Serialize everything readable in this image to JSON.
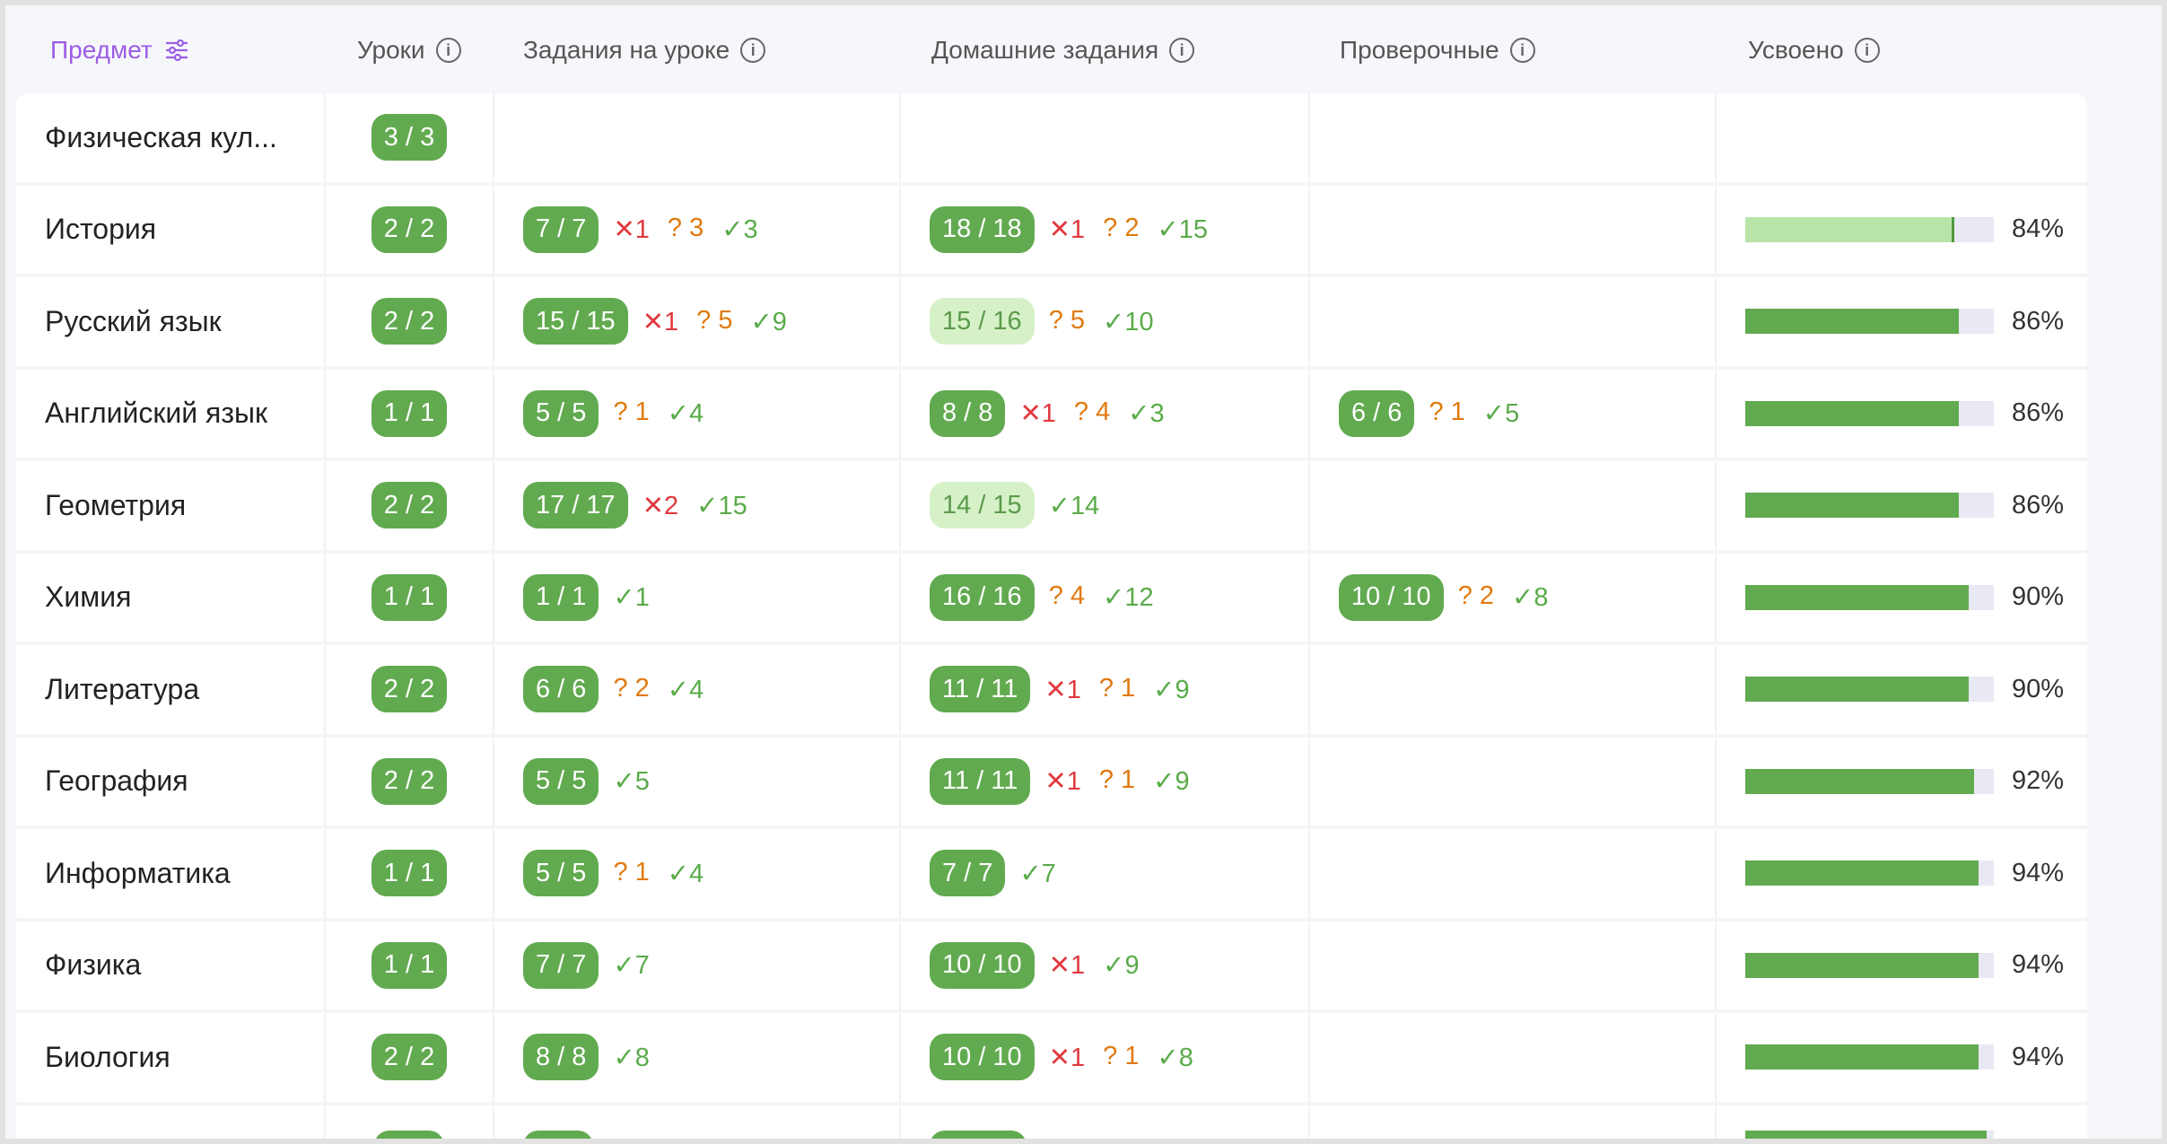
{
  "header": {
    "subject": "Предмет",
    "lessons": "Уроки",
    "class_tasks": "Задания на уроке",
    "homework": "Домашние задания",
    "tests": "Проверочные",
    "mastered": "Усвоено"
  },
  "colors": {
    "accent": "#9b5de5",
    "pill": "#62aa50",
    "pill_partial": "#d6f1c8",
    "wrong": "#e0393e",
    "unknown": "#e07a10",
    "correct": "#5aab4a"
  },
  "rows": [
    {
      "subject": "Физическая кул...",
      "lessons": "3 / 3"
    },
    {
      "subject": "История",
      "lessons": "2 / 2",
      "class": {
        "score": "7 / 7",
        "x": "1",
        "q": "3",
        "ok": "3"
      },
      "home": {
        "score": "18 / 18",
        "x": "1",
        "q": "2",
        "ok": "15"
      },
      "mastered": 84,
      "mastered_label": "84%",
      "light": true
    },
    {
      "subject": "Русский язык",
      "lessons": "2 / 2",
      "class": {
        "score": "15 / 15",
        "x": "1",
        "q": "5",
        "ok": "9"
      },
      "home": {
        "score": "15 / 16",
        "partial": true,
        "q": "5",
        "ok": "10"
      },
      "mastered": 86,
      "mastered_label": "86%"
    },
    {
      "subject": "Английский язык",
      "lessons": "1 / 1",
      "class": {
        "score": "5 / 5",
        "q": "1",
        "ok": "4"
      },
      "home": {
        "score": "8 / 8",
        "x": "1",
        "q": "4",
        "ok": "3"
      },
      "tests": {
        "score": "6 / 6",
        "q": "1",
        "ok": "5"
      },
      "mastered": 86,
      "mastered_label": "86%"
    },
    {
      "subject": "Геометрия",
      "lessons": "2 / 2",
      "class": {
        "score": "17 / 17",
        "x": "2",
        "ok": "15"
      },
      "home": {
        "score": "14 / 15",
        "partial": true,
        "ok": "14"
      },
      "mastered": 86,
      "mastered_label": "86%"
    },
    {
      "subject": "Химия",
      "lessons": "1 / 1",
      "class": {
        "score": "1 / 1",
        "ok": "1"
      },
      "home": {
        "score": "16 / 16",
        "q": "4",
        "ok": "12"
      },
      "tests": {
        "score": "10 / 10",
        "q": "2",
        "ok": "8"
      },
      "mastered": 90,
      "mastered_label": "90%"
    },
    {
      "subject": "Литература",
      "lessons": "2 / 2",
      "class": {
        "score": "6 / 6",
        "q": "2",
        "ok": "4"
      },
      "home": {
        "score": "11 / 11",
        "x": "1",
        "q": "1",
        "ok": "9"
      },
      "mastered": 90,
      "mastered_label": "90%"
    },
    {
      "subject": "География",
      "lessons": "2 / 2",
      "class": {
        "score": "5 / 5",
        "ok": "5"
      },
      "home": {
        "score": "11 / 11",
        "x": "1",
        "q": "1",
        "ok": "9"
      },
      "mastered": 92,
      "mastered_label": "92%"
    },
    {
      "subject": "Информатика",
      "lessons": "1 / 1",
      "class": {
        "score": "5 / 5",
        "q": "1",
        "ok": "4"
      },
      "home": {
        "score": "7 / 7",
        "ok": "7"
      },
      "mastered": 94,
      "mastered_label": "94%"
    },
    {
      "subject": "Физика",
      "lessons": "1 / 1",
      "class": {
        "score": "7 / 7",
        "ok": "7"
      },
      "home": {
        "score": "10 / 10",
        "x": "1",
        "ok": "9"
      },
      "mastered": 94,
      "mastered_label": "94%"
    },
    {
      "subject": "Биология",
      "lessons": "2 / 2",
      "class": {
        "score": "8 / 8",
        "ok": "8"
      },
      "home": {
        "score": "10 / 10",
        "x": "1",
        "q": "1",
        "ok": "8"
      },
      "mastered": 94,
      "mastered_label": "94%"
    }
  ]
}
